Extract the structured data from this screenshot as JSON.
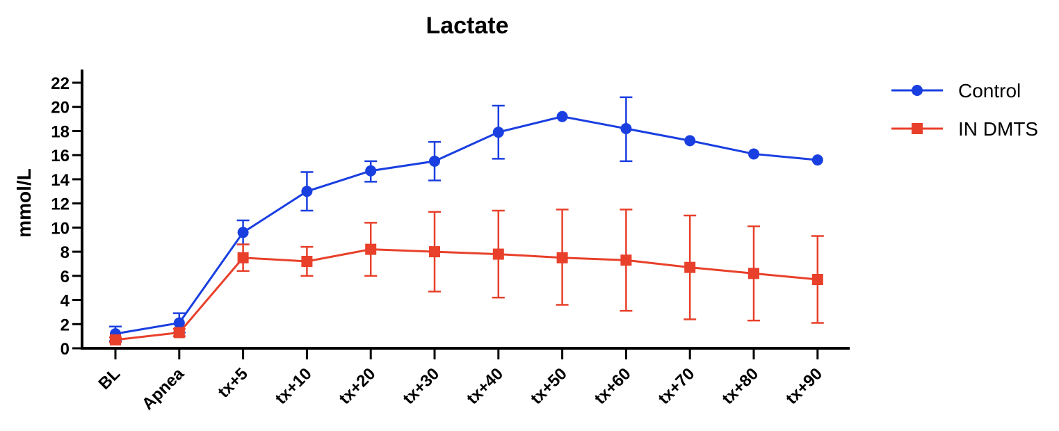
{
  "chart_data": {
    "type": "line",
    "title": "Lactate",
    "xlabel": "",
    "ylabel": "mmol/L",
    "categories": [
      "BL",
      "Apnea",
      "tx+5",
      "tx+10",
      "tx+20",
      "tx+30",
      "tx+40",
      "tx+50",
      "tx+60",
      "tx+70",
      "tx+80",
      "tx+90"
    ],
    "ylim": [
      0,
      22
    ],
    "yticks": [
      0,
      2,
      4,
      6,
      8,
      10,
      12,
      14,
      16,
      18,
      20,
      22
    ],
    "ytick_labels": [
      "0",
      "2",
      "4",
      "6",
      "8",
      "10",
      "12",
      "14",
      "16",
      "18",
      "20",
      "22"
    ],
    "grid": false,
    "legend_position": "top-right",
    "series": [
      {
        "name": "Control",
        "color": "#1a3fe0",
        "marker": "circle",
        "values": [
          1.2,
          2.1,
          9.6,
          13.0,
          14.7,
          15.5,
          17.9,
          19.2,
          18.2,
          17.2,
          16.1,
          15.6
        ],
        "error_upper": [
          1.8,
          2.9,
          10.6,
          14.6,
          15.5,
          17.1,
          20.1,
          19.2,
          20.8,
          17.2,
          16.1,
          15.6
        ],
        "error_lower": [
          0.6,
          1.3,
          8.6,
          11.4,
          13.8,
          13.9,
          15.7,
          19.2,
          15.5,
          17.2,
          16.1,
          15.6
        ]
      },
      {
        "name": "IN DMTS",
        "color": "#e8402a",
        "marker": "square",
        "values": [
          0.7,
          1.3,
          7.5,
          7.2,
          8.2,
          8.0,
          7.8,
          7.5,
          7.3,
          6.7,
          6.2,
          5.7
        ],
        "error_upper": [
          0.9,
          1.6,
          8.6,
          8.4,
          10.4,
          11.3,
          11.4,
          11.5,
          11.5,
          11.0,
          10.1,
          9.3
        ],
        "error_lower": [
          0.5,
          1.0,
          6.4,
          6.0,
          6.0,
          4.7,
          4.2,
          3.6,
          3.1,
          2.4,
          2.3,
          2.1
        ]
      }
    ]
  }
}
